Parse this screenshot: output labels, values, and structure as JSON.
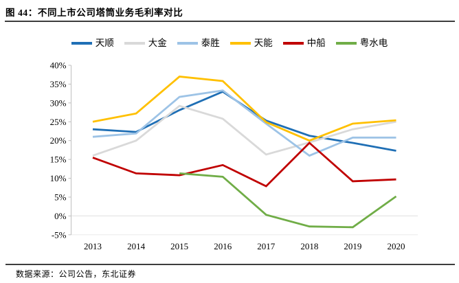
{
  "figure": {
    "title": "图 44：不同上市公司塔筒业务毛利率对比",
    "source": "数据来源：公司公告，东北证券"
  },
  "colors": {
    "axis_line": "#BFBFBF",
    "zero_gridline": "#E6E6E6",
    "baseline": "#EBEBEB",
    "rule": "#3d3d3d"
  },
  "chart_data": {
    "type": "line",
    "title": "不同上市公司塔筒业务毛利率对比",
    "categories": [
      "2013",
      "2014",
      "2015",
      "2016",
      "2017",
      "2018",
      "2019",
      "2020"
    ],
    "series": [
      {
        "name": "天顺",
        "color": "#1F6FB5",
        "values": [
          23.0,
          22.3,
          28.1,
          33.0,
          25.3,
          21.3,
          19.4,
          17.3
        ]
      },
      {
        "name": "大金",
        "color": "#D9D9D9",
        "values": [
          16.0,
          20.0,
          29.2,
          25.8,
          16.3,
          19.5,
          23.0,
          25.0
        ]
      },
      {
        "name": "泰胜",
        "color": "#9DC3E6",
        "values": [
          21.0,
          21.9,
          31.6,
          33.3,
          24.5,
          16.0,
          20.8,
          20.8
        ]
      },
      {
        "name": "天能",
        "color": "#FFC000",
        "values": [
          25.0,
          27.2,
          37.0,
          35.8,
          24.9,
          20.0,
          24.5,
          25.4
        ]
      },
      {
        "name": "中船",
        "color": "#C00000",
        "values": [
          15.5,
          11.3,
          10.8,
          13.5,
          7.9,
          19.4,
          9.2,
          9.7
        ]
      },
      {
        "name": "粤水电",
        "color": "#70AD47",
        "values": [
          null,
          null,
          11.3,
          10.4,
          0.3,
          -2.8,
          -3.0,
          5.2
        ]
      }
    ],
    "xlabel": "",
    "ylabel": "",
    "ylim": [
      -5,
      40
    ],
    "ytick_step": 5,
    "yticks": [
      "40%",
      "35%",
      "30%",
      "25%",
      "20%",
      "15%",
      "10%",
      "5%",
      "0%",
      "-5%"
    ],
    "grid": "horizontal-zero-line-only",
    "legend_position": "top-center"
  }
}
